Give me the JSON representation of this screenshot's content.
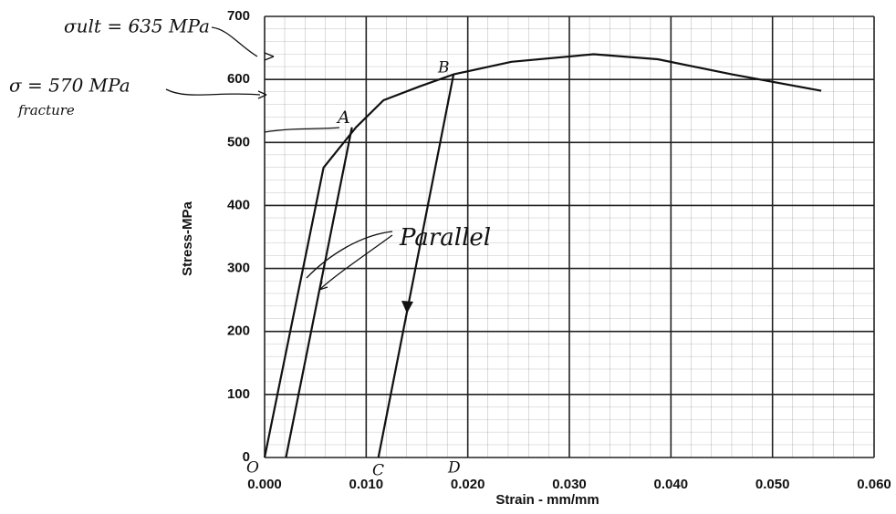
{
  "chart_data": {
    "type": "line",
    "x_label": "Strain - mm/mm",
    "y_label": "Stress-MPa",
    "xlim": [
      0,
      0.06
    ],
    "ylim": [
      0,
      700
    ],
    "xticks": [
      {
        "value": 0,
        "label": "0.000"
      },
      {
        "value": 0.01,
        "label": "0.010"
      },
      {
        "value": 0.02,
        "label": "0.020"
      },
      {
        "value": 0.03,
        "label": "0.030"
      },
      {
        "value": 0.04,
        "label": "0.040"
      },
      {
        "value": 0.05,
        "label": "0.050"
      },
      {
        "value": 0.06,
        "label": "0.060"
      }
    ],
    "yticks": [
      0,
      100,
      200,
      300,
      400,
      500,
      600,
      700
    ],
    "grid": true,
    "series": [
      {
        "color": "#111111",
        "x": [
          0,
          0.0058,
          0.009,
          0.0117,
          0.0153,
          0.0186,
          0.0243,
          0.0324,
          0.0387,
          0.046,
          0.0548
        ],
        "values": [
          0,
          460,
          524,
          567,
          589,
          608,
          628,
          640,
          632,
          608,
          582
        ]
      },
      {
        "color": "#111111",
        "x": [
          0.0186,
          0.0112
        ],
        "values": [
          608,
          0
        ]
      },
      {
        "color": "#111111",
        "x": [
          0.0021,
          0.0086
        ],
        "values": [
          0,
          524
        ]
      }
    ],
    "annotations": [
      "σult = 635 MPa",
      "σ = 570 MPa",
      "fracture",
      "Parallel",
      "O",
      "A",
      "B",
      "C",
      "D"
    ]
  }
}
